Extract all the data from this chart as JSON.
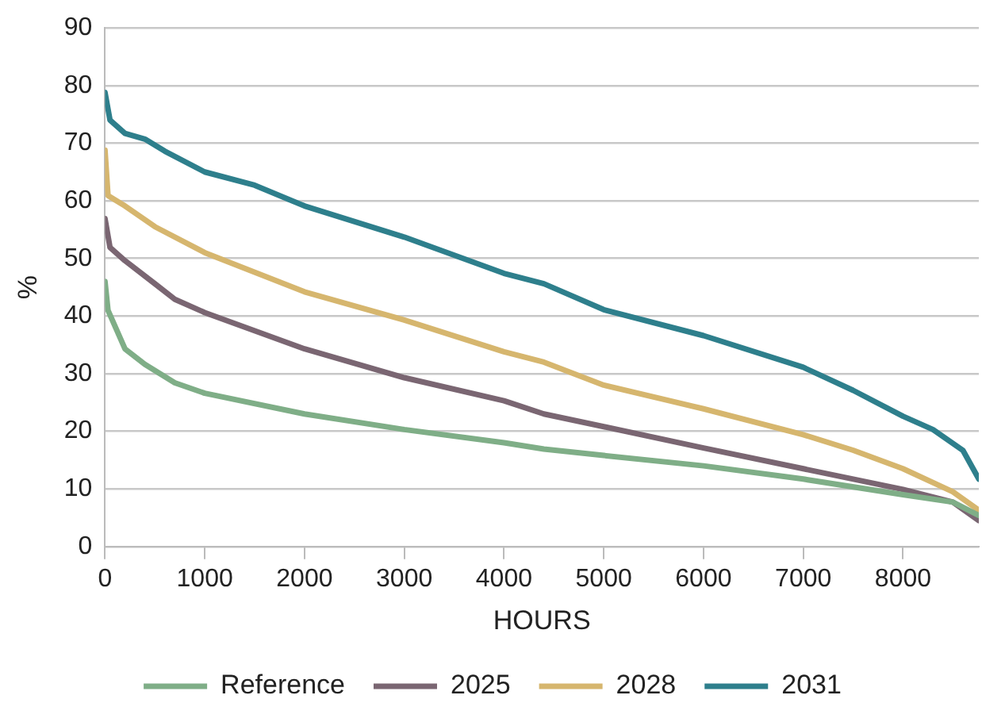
{
  "chart_data": {
    "type": "line",
    "xlabel": "HOURS",
    "ylabel": "%",
    "xlim": [
      0,
      8760
    ],
    "xticks": [
      0,
      1000,
      2000,
      3000,
      4000,
      5000,
      6000,
      7000,
      8000
    ],
    "ylim": [
      0,
      90
    ],
    "yticks": [
      0,
      10,
      20,
      30,
      40,
      50,
      60,
      70,
      80,
      90
    ],
    "grid": "y",
    "legend": "bottom",
    "marker": "none",
    "line_style": "solid",
    "series": [
      {
        "name": "Reference",
        "color": "#7fae87",
        "x": [
          0,
          30,
          200,
          400,
          700,
          1000,
          2000,
          3000,
          4000,
          4400,
          5000,
          6000,
          7000,
          8000,
          8500,
          8760
        ],
        "values": [
          46,
          41,
          34.3,
          31.6,
          28.4,
          26.6,
          23,
          20.3,
          18,
          16.9,
          15.8,
          14,
          11.7,
          9,
          7.7,
          5.4
        ]
      },
      {
        "name": "2025",
        "color": "#7a6672",
        "x": [
          0,
          50,
          200,
          500,
          700,
          1000,
          2000,
          3000,
          4000,
          4400,
          5000,
          6000,
          7000,
          8000,
          8500,
          8760
        ],
        "values": [
          56.9,
          51.9,
          49.6,
          45.6,
          42.9,
          40.6,
          34.3,
          29.3,
          25.3,
          23,
          20.8,
          17.1,
          13.5,
          9.9,
          7.7,
          4.5
        ]
      },
      {
        "name": "2028",
        "color": "#d6b66e",
        "x": [
          0,
          30,
          200,
          500,
          1000,
          2000,
          3000,
          4000,
          4400,
          5000,
          6000,
          7000,
          7500,
          8000,
          8500,
          8760
        ],
        "values": [
          68.8,
          60.9,
          59.1,
          55.5,
          51,
          44.2,
          39.3,
          33.8,
          32,
          28,
          23.9,
          19.4,
          16.7,
          13.5,
          9.5,
          6.3
        ]
      },
      {
        "name": "2031",
        "color": "#2e7f8c",
        "x": [
          0,
          50,
          200,
          400,
          600,
          1000,
          1500,
          2000,
          3000,
          4000,
          4400,
          5000,
          6000,
          7000,
          7500,
          8000,
          8300,
          8600,
          8760
        ],
        "values": [
          78.8,
          74,
          71.7,
          70.7,
          68.6,
          65,
          62.7,
          59.1,
          53.7,
          47.4,
          45.6,
          41.1,
          36.6,
          31.1,
          27.1,
          22.6,
          20.3,
          16.7,
          11.7
        ]
      }
    ]
  }
}
